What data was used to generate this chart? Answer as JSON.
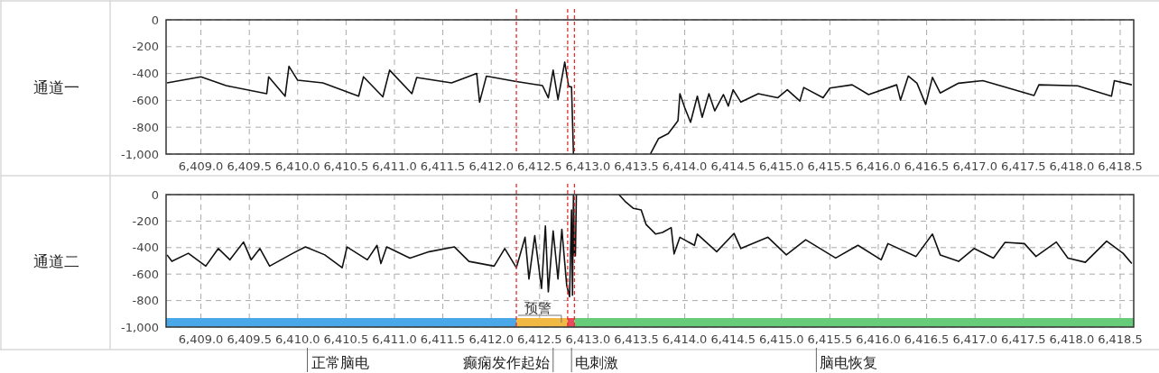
{
  "chart_data": [
    {
      "type": "line",
      "ylabel": "通道一",
      "xlim": [
        6408.64,
        6418.64
      ],
      "ylim": [
        -1000,
        0
      ],
      "grid": true,
      "xticks": [
        {
          "value": 6409.0,
          "label": "6,409.0"
        },
        {
          "value": 6409.5,
          "label": "6,409.5"
        },
        {
          "value": 6410.0,
          "label": "6,410.0"
        },
        {
          "value": 6410.5,
          "label": "6,410.5"
        },
        {
          "value": 6411.0,
          "label": "6,411.0"
        },
        {
          "value": 6411.5,
          "label": "6,411.5"
        },
        {
          "value": 6412.0,
          "label": "6,412.0"
        },
        {
          "value": 6412.5,
          "label": "6,412.5"
        },
        {
          "value": 6413.0,
          "label": "6,413.0"
        },
        {
          "value": 6413.5,
          "label": "6,413.5"
        },
        {
          "value": 6414.0,
          "label": "6,414.0"
        },
        {
          "value": 6414.5,
          "label": "6,414.5"
        },
        {
          "value": 6415.0,
          "label": "6,415.0"
        },
        {
          "value": 6415.5,
          "label": "6,415.5"
        },
        {
          "value": 6416.0,
          "label": "6,416.0"
        },
        {
          "value": 6416.5,
          "label": "6,416.5"
        },
        {
          "value": 6417.0,
          "label": "6,417.0"
        },
        {
          "value": 6417.5,
          "label": "6,417.5"
        },
        {
          "value": 6418.0,
          "label": "6,418.0"
        },
        {
          "value": 6418.5,
          "label": "6,418.5"
        }
      ],
      "yticks": [
        {
          "value": -1000,
          "label": "-1,000"
        },
        -800,
        -600,
        -400,
        -200,
        0
      ],
      "series": [
        {
          "color": "#111111",
          "x": [
            6408.65,
            6409.0,
            6409.26,
            6409.68,
            6409.7,
            6409.87,
            6409.91,
            6410.0,
            6410.26,
            6410.63,
            6410.68,
            6410.88,
            6410.95,
            6411.18,
            6411.23,
            6411.59,
            6411.85,
            6411.88,
            6411.95,
            6412.26,
            6412.53,
            6412.59,
            6412.64,
            6412.69,
            6412.76,
            6412.8,
            6412.83,
            6412.85,
            6413.2,
            6413.65,
            6413.73,
            6413.83,
            6413.93,
            6413.95,
            6414.0,
            6414.06,
            6414.13,
            6414.18,
            6414.25,
            6414.31,
            6414.4,
            6414.45,
            6414.5,
            6414.58,
            6414.76,
            6414.96,
            6415.06,
            6415.19,
            6415.23,
            6415.43,
            6415.5,
            6415.73,
            6415.9,
            6416.19,
            6416.23,
            6416.31,
            6416.4,
            6416.49,
            6416.56,
            6416.64,
            6416.83,
            6417.08,
            6417.29,
            6417.61,
            6417.66,
            6418.06,
            6418.41,
            6418.44,
            6418.62
          ],
          "values": [
            -470,
            -424,
            -490,
            -550,
            -424,
            -569,
            -346,
            -450,
            -470,
            -569,
            -424,
            -574,
            -375,
            -550,
            -430,
            -470,
            -400,
            -613,
            -420,
            -460,
            -490,
            -581,
            -375,
            -593,
            -315,
            -496,
            -500,
            -1000,
            null,
            -993,
            -884,
            -847,
            -751,
            -550,
            -654,
            -763,
            -569,
            -726,
            -550,
            -678,
            -557,
            -642,
            -521,
            -613,
            -550,
            -581,
            -521,
            -605,
            -504,
            -581,
            -508,
            -484,
            -557,
            -484,
            -598,
            -419,
            -472,
            -630,
            -429,
            -545,
            -472,
            -453,
            -496,
            -564,
            -484,
            -492,
            -569,
            -453,
            -484
          ]
        }
      ],
      "ref_lines": [
        {
          "axis": "x",
          "value": 6412.26,
          "color": "#e03030",
          "line_style": "dashed"
        },
        {
          "axis": "x",
          "value": 6412.79,
          "color": "#e03030",
          "line_style": "dashed"
        },
        {
          "axis": "x",
          "value": 6412.86,
          "color": "#e03030",
          "line_style": "dashed"
        }
      ]
    },
    {
      "type": "line",
      "ylabel": "通道二",
      "xlim": [
        6408.64,
        6418.64
      ],
      "ylim": [
        -1000,
        0
      ],
      "grid": true,
      "xticks": [
        {
          "value": 6409.0,
          "label": "6,409.0"
        },
        {
          "value": 6409.5,
          "label": "6,409.5"
        },
        {
          "value": 6410.0,
          "label": "6,410.0"
        },
        {
          "value": 6410.5,
          "label": "6,410.5"
        },
        {
          "value": 6411.0,
          "label": "6,411.0"
        },
        {
          "value": 6411.5,
          "label": "6,411.5"
        },
        {
          "value": 6412.0,
          "label": "6,412.0"
        },
        {
          "value": 6412.5,
          "label": "6,412.5"
        },
        {
          "value": 6413.0,
          "label": "6,413.0"
        },
        {
          "value": 6413.5,
          "label": "6,413.5"
        },
        {
          "value": 6414.0,
          "label": "6,414.0"
        },
        {
          "value": 6414.5,
          "label": "6,414.5"
        },
        {
          "value": 6415.0,
          "label": "6,415.0"
        },
        {
          "value": 6415.5,
          "label": "6,415.5"
        },
        {
          "value": 6416.0,
          "label": "6,416.0"
        },
        {
          "value": 6416.5,
          "label": "6,416.5"
        },
        {
          "value": 6417.0,
          "label": "6,417.0"
        },
        {
          "value": 6417.5,
          "label": "6,417.5"
        },
        {
          "value": 6418.0,
          "label": "6,418.0"
        },
        {
          "value": 6418.5,
          "label": "6,418.5"
        }
      ],
      "yticks": [
        {
          "value": -1000,
          "label": "-1,000"
        },
        -800,
        -600,
        -400,
        -200,
        0
      ],
      "series": [
        {
          "color": "#111111",
          "x": [
            6408.65,
            6408.7,
            6408.87,
            6409.05,
            6409.18,
            6409.3,
            6409.44,
            6409.52,
            6409.61,
            6409.71,
            6409.95,
            6410.08,
            6410.28,
            6410.46,
            6410.51,
            6410.72,
            6410.82,
            6410.86,
            6410.92,
            6411.16,
            6411.36,
            6411.62,
            6411.77,
            6412.03,
            6412.14,
            6412.26,
            6412.35,
            6412.39,
            6412.45,
            6412.52,
            6412.56,
            6412.59,
            6412.64,
            6412.69,
            6412.73,
            6412.78,
            6412.81,
            6412.83,
            6412.84,
            6412.85,
            6412.86,
            6412.87,
            6412.88,
            6413.1,
            6413.32,
            6413.39,
            6413.47,
            6413.55,
            6413.6,
            6413.7,
            6413.77,
            6413.86,
            6413.89,
            6413.95,
            6414.1,
            6414.13,
            6414.33,
            6414.51,
            6414.58,
            6414.86,
            6415.05,
            6415.25,
            6415.56,
            6415.79,
            6416.03,
            6416.1,
            6416.39,
            6416.56,
            6416.64,
            6416.83,
            6416.99,
            6417.19,
            6417.31,
            6417.51,
            6417.63,
            6417.84,
            6417.96,
            6418.14,
            6418.36,
            6418.53,
            6418.62
          ],
          "values": [
            -455,
            -504,
            -443,
            -540,
            -407,
            -492,
            -358,
            -492,
            -407,
            -540,
            -443,
            -395,
            -455,
            -552,
            -395,
            -492,
            -383,
            -521,
            -395,
            -479,
            -431,
            -395,
            -504,
            -540,
            -407,
            -552,
            -322,
            -637,
            -310,
            -709,
            -237,
            -734,
            -274,
            -637,
            -262,
            -685,
            -770,
            -116,
            -760,
            0,
            -462,
            -462,
            0,
            null,
            0,
            -56,
            -104,
            -116,
            -225,
            -298,
            -286,
            -249,
            -448,
            -322,
            -383,
            -298,
            -431,
            -293,
            -407,
            -322,
            -455,
            -341,
            -479,
            -383,
            -492,
            -370,
            -467,
            -298,
            -455,
            -504,
            -407,
            -479,
            -361,
            -370,
            -467,
            -358,
            -479,
            -511,
            -351,
            -443,
            -521
          ]
        }
      ],
      "ref_lines": [
        {
          "axis": "x",
          "value": 6412.26,
          "color": "#e03030",
          "line_style": "dashed"
        },
        {
          "axis": "x",
          "value": 6412.79,
          "color": "#e03030",
          "line_style": "dashed"
        },
        {
          "axis": "x",
          "value": 6412.86,
          "color": "#e03030",
          "line_style": "dashed"
        }
      ],
      "bands": [
        {
          "axis": "x",
          "from": 6408.64,
          "to": 6412.26,
          "color": "#4aa8e8"
        },
        {
          "axis": "x",
          "from": 6412.26,
          "to": 6412.79,
          "color": "#f2b844"
        },
        {
          "axis": "x",
          "from": 6412.79,
          "to": 6412.86,
          "color": "#e84b5a"
        },
        {
          "axis": "x",
          "from": 6412.86,
          "to": 6418.64,
          "color": "#66cc7a"
        }
      ],
      "annotations": [
        {
          "text": "预警",
          "x": 6412.52,
          "y": -900
        },
        {
          "text": "正常脑电",
          "x": 6410.1,
          "y": -1000
        },
        {
          "text": "癫痫发作起始",
          "x": 6412.64,
          "y": -1000
        },
        {
          "text": "电刺激",
          "x": 6412.83,
          "y": -1000
        },
        {
          "text": "脑电恢复",
          "x": 6415.36,
          "y": -1000
        }
      ]
    }
  ]
}
